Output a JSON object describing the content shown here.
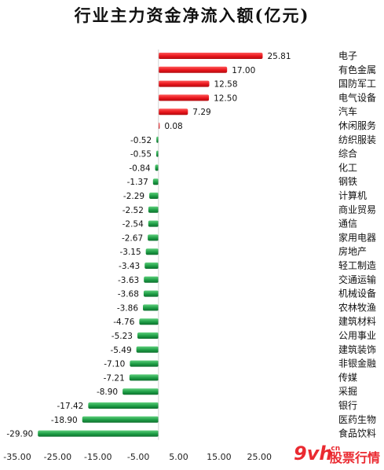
{
  "chart_data": {
    "type": "bar",
    "orientation": "horizontal",
    "title": "行业主力资金净流入额(亿元)",
    "categories": [
      "电子",
      "有色金属",
      "国防军工",
      "电气设备",
      "汽车",
      "休闲服务",
      "纺织服装",
      "综合",
      "化工",
      "钢铁",
      "计算机",
      "商业贸易",
      "通信",
      "家用电器",
      "房地产",
      "轻工制造",
      "交通运输",
      "机械设备",
      "农林牧渔",
      "建筑材料",
      "公用事业",
      "建筑装饰",
      "非银金融",
      "传媒",
      "采掘",
      "银行",
      "医药生物",
      "食品饮料"
    ],
    "values": [
      25.81,
      17.0,
      12.58,
      12.5,
      7.29,
      0.08,
      -0.52,
      -0.55,
      -0.84,
      -1.37,
      -2.29,
      -2.52,
      -2.54,
      -2.67,
      -3.15,
      -3.43,
      -3.63,
      -3.68,
      -3.86,
      -4.76,
      -5.23,
      -5.49,
      -7.1,
      -7.21,
      -8.9,
      -17.42,
      -18.9,
      -29.9
    ],
    "value_labels": [
      "25.81",
      "17.00",
      "12.58",
      "12.50",
      "7.29",
      "0.08",
      "-0.52",
      "-0.55",
      "-0.84",
      "-1.37",
      "-2.29",
      "-2.52",
      "-2.54",
      "-2.67",
      "-3.15",
      "-3.43",
      "-3.63",
      "-3.68",
      "-3.86",
      "-4.76",
      "-5.23",
      "-5.49",
      "-7.10",
      "-7.21",
      "-8.90",
      "-17.42",
      "-18.90",
      "-29.90"
    ],
    "xlim": [
      -35,
      30
    ],
    "x_ticks": [
      -35,
      -25,
      -15,
      -5,
      5,
      15,
      25
    ],
    "x_tick_labels": [
      "-35.00",
      "-25.00",
      "-15.00",
      "-5.00",
      "5.00",
      "15.00",
      "25.00"
    ],
    "grid": false,
    "legend": "none",
    "colors": {
      "positive": "#e8141b",
      "negative": "#1d9d45"
    }
  },
  "watermark": {
    "prefix": "9vh",
    "suffix": ".cn",
    "text": "股票行情"
  }
}
